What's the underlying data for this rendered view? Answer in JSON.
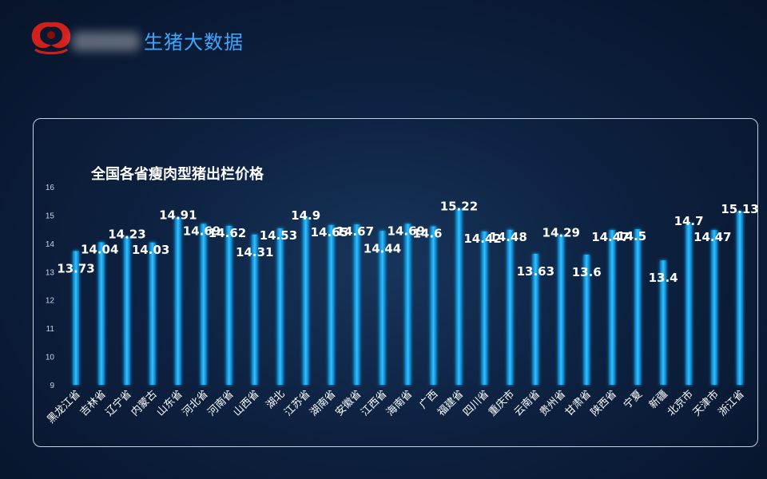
{
  "header": {
    "brand": "生猪大数据",
    "logo": "red-swirl-logo-icon"
  },
  "chart_data": {
    "type": "bar",
    "title": "全国各省瘦肉型猪出栏价格",
    "xlabel": "",
    "ylabel": "",
    "ylim": [
      9,
      16
    ],
    "yticks": [
      9,
      10,
      11,
      12,
      13,
      14,
      15,
      16
    ],
    "grid": false,
    "legend": "none",
    "bar_color": "#1fb0f0",
    "categories": [
      "黑龙江省",
      "吉林省",
      "辽宁省",
      "内蒙古",
      "山东省",
      "河北省",
      "河南省",
      "山西省",
      "湖北",
      "江苏省",
      "湖南省",
      "安徽省",
      "江西省",
      "海南省",
      "广西",
      "福建省",
      "四川省",
      "重庆市",
      "云南省",
      "贵州省",
      "甘肃省",
      "陕西省",
      "宁夏",
      "新疆",
      "北京市",
      "天津市",
      "浙江省"
    ],
    "values": [
      13.73,
      14.04,
      14.23,
      14.03,
      14.91,
      14.69,
      14.62,
      14.31,
      14.53,
      14.9,
      14.65,
      14.67,
      14.44,
      14.69,
      14.6,
      15.22,
      14.42,
      14.48,
      13.63,
      14.29,
      13.6,
      14.47,
      14.5,
      13.4,
      14.7,
      14.47,
      15.13
    ],
    "data_labels": [
      "13.73",
      "14.04",
      "14.23",
      "14.03",
      "14.91",
      "14.69",
      "14.62",
      "14.31",
      "14.53",
      "14.9",
      "14.65",
      "14.67",
      "14.44",
      "14.69",
      "14.6",
      "15.22",
      "14.42",
      "14.48",
      "13.63",
      "14.29",
      "13.6",
      "14.47",
      "14.5",
      "13.4",
      "14.7",
      "14.47",
      "15.13"
    ],
    "label_side": [
      "below",
      "right",
      "top",
      "right",
      "top",
      "right",
      "right",
      "below",
      "right",
      "top",
      "right",
      "right",
      "below",
      "right",
      "right",
      "top",
      "right",
      "right",
      "below",
      "top",
      "below",
      "right",
      "right",
      "below",
      "top",
      "right",
      "top"
    ]
  }
}
